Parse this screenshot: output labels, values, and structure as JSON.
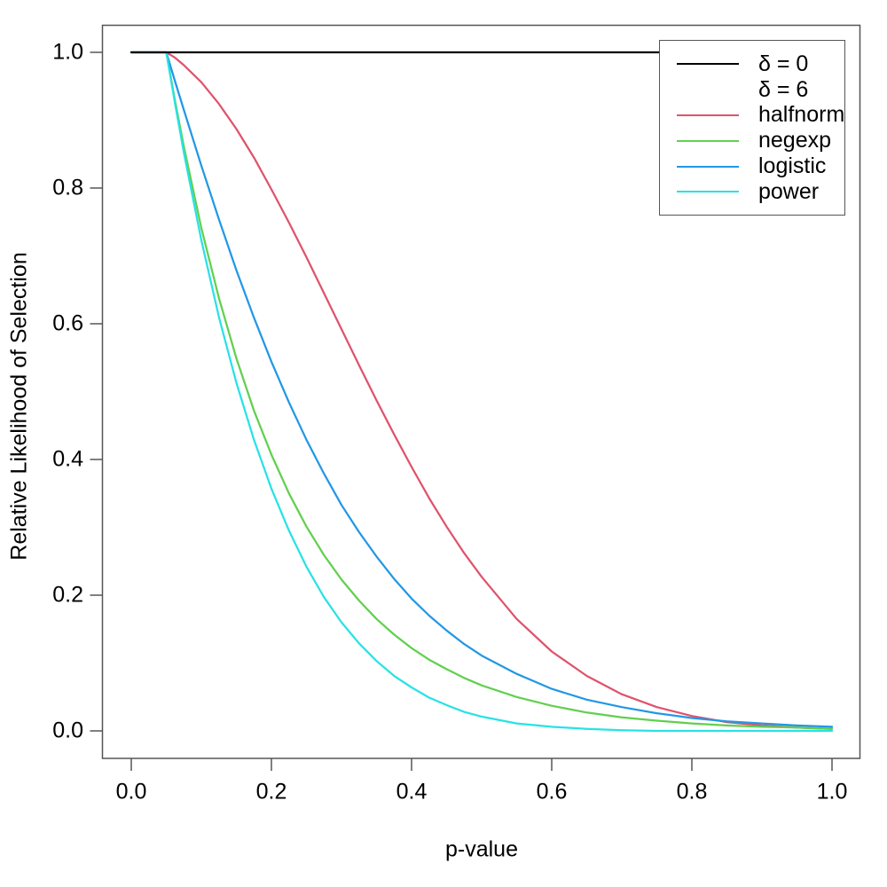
{
  "chart_data": {
    "type": "line",
    "title": "",
    "xlabel": "p-value",
    "ylabel": "Relative Likelihood of Selection",
    "xlim": [
      0,
      1
    ],
    "ylim": [
      0,
      1
    ],
    "grid": false,
    "x_ticks": [
      "0.0",
      "0.2",
      "0.4",
      "0.6",
      "0.8",
      "1.0"
    ],
    "x_tick_values": [
      0,
      0.2,
      0.4,
      0.6,
      0.8,
      1.0
    ],
    "y_ticks": [
      "0.0",
      "0.2",
      "0.4",
      "0.6",
      "0.8",
      "1.0"
    ],
    "y_tick_values": [
      0,
      0.2,
      0.4,
      0.6,
      0.8,
      1.0
    ],
    "selection_cutoff_alpha": 0.05,
    "delta": 6,
    "x": [
      0,
      0.05,
      0.0625,
      0.075,
      0.1,
      0.125,
      0.15,
      0.175,
      0.2,
      0.225,
      0.25,
      0.275,
      0.3,
      0.325,
      0.35,
      0.375,
      0.4,
      0.425,
      0.45,
      0.475,
      0.5,
      0.55,
      0.6,
      0.65,
      0.7,
      0.75,
      0.8,
      0.85,
      0.9,
      0.95,
      1.0
    ],
    "series": [
      {
        "name": "delta0",
        "legend": "δ = 0",
        "color": "#000000",
        "x": [
          0,
          1
        ],
        "w": [
          1,
          1
        ]
      },
      {
        "name": "halfnorm",
        "legend": "halfnorm",
        "color": "#DF536B",
        "w": [
          1,
          1,
          0.992,
          0.981,
          0.956,
          0.924,
          0.887,
          0.845,
          0.798,
          0.749,
          0.698,
          0.645,
          0.592,
          0.539,
          0.487,
          0.437,
          0.389,
          0.343,
          0.301,
          0.262,
          0.227,
          0.165,
          0.117,
          0.081,
          0.054,
          0.035,
          0.022,
          0.013,
          0.008,
          0.005,
          0.003
        ]
      },
      {
        "name": "negexp",
        "legend": "negexp",
        "color": "#61D04F",
        "w": [
          1,
          1,
          0.928,
          0.861,
          0.741,
          0.638,
          0.549,
          0.472,
          0.407,
          0.35,
          0.301,
          0.259,
          0.223,
          0.192,
          0.165,
          0.142,
          0.122,
          0.105,
          0.091,
          0.078,
          0.067,
          0.05,
          0.037,
          0.027,
          0.02,
          0.015,
          0.011,
          0.008,
          0.006,
          0.005,
          0.003
        ]
      },
      {
        "name": "logistic",
        "legend": "logistic",
        "color": "#2297E6",
        "w": [
          1,
          1,
          0.957,
          0.915,
          0.833,
          0.754,
          0.679,
          0.609,
          0.544,
          0.484,
          0.429,
          0.379,
          0.333,
          0.293,
          0.257,
          0.224,
          0.195,
          0.17,
          0.148,
          0.128,
          0.111,
          0.084,
          0.062,
          0.046,
          0.035,
          0.026,
          0.019,
          0.014,
          0.011,
          0.008,
          0.006
        ]
      },
      {
        "name": "power",
        "legend": "power",
        "color": "#28E2E5",
        "w": [
          1,
          1,
          0.924,
          0.852,
          0.723,
          0.61,
          0.513,
          0.429,
          0.357,
          0.295,
          0.242,
          0.197,
          0.16,
          0.129,
          0.103,
          0.081,
          0.064,
          0.049,
          0.038,
          0.028,
          0.021,
          0.011,
          0.006,
          0.003,
          0.001,
          0,
          0,
          0,
          0,
          0,
          0
        ]
      }
    ],
    "legend_position": "topright",
    "legend_entries": [
      {
        "label": "δ = 0",
        "color": "#000000",
        "has_line": true
      },
      {
        "label": "δ = 6",
        "color": null,
        "has_line": false
      },
      {
        "label": "halfnorm",
        "color": "#DF536B",
        "has_line": true
      },
      {
        "label": "negexp",
        "color": "#61D04F",
        "has_line": true
      },
      {
        "label": "logistic",
        "color": "#2297E6",
        "has_line": true
      },
      {
        "label": "power",
        "color": "#28E2E5",
        "has_line": true
      }
    ],
    "axis_color": "#555555",
    "background": "#ffffff"
  }
}
